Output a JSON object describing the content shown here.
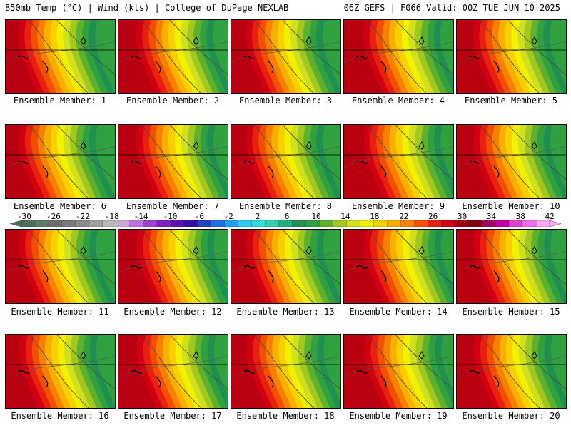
{
  "header": {
    "left": "850mb Temp (°C) | Wind (kts) | College of DuPage NEXLAB",
    "right": "06Z GEFS | F066 Valid: 00Z TUE JUN 10 2025"
  },
  "panels": [
    {
      "label": "Ensemble Member: 1"
    },
    {
      "label": "Ensemble Member: 2"
    },
    {
      "label": "Ensemble Member: 3"
    },
    {
      "label": "Ensemble Member: 4"
    },
    {
      "label": "Ensemble Member: 5"
    },
    {
      "label": "Ensemble Member: 6"
    },
    {
      "label": "Ensemble Member: 7"
    },
    {
      "label": "Ensemble Member: 8"
    },
    {
      "label": "Ensemble Member: 9"
    },
    {
      "label": "Ensemble Member: 10"
    },
    {
      "label": "Ensemble Member: 11"
    },
    {
      "label": "Ensemble Member: 12"
    },
    {
      "label": "Ensemble Member: 13"
    },
    {
      "label": "Ensemble Member: 14"
    },
    {
      "label": "Ensemble Member: 15"
    },
    {
      "label": "Ensemble Member: 16"
    },
    {
      "label": "Ensemble Member: 17"
    },
    {
      "label": "Ensemble Member: 18"
    },
    {
      "label": "Ensemble Member: 19"
    },
    {
      "label": "Ensemble Member: 20"
    }
  ],
  "colorbar": {
    "labels": [
      "-30",
      "-26",
      "-22",
      "-18",
      "-14",
      "-10",
      "-6",
      "-2",
      "2",
      "6",
      "10",
      "14",
      "18",
      "22",
      "26",
      "30",
      "34",
      "38",
      "42"
    ],
    "colors": [
      "#4d6e5a",
      "#5e7a66",
      "#6e6e6e",
      "#7a7a7a",
      "#8a8a8a",
      "#a0a0a0",
      "#b8b8b8",
      "#cfa8d8",
      "#c070e0",
      "#a040d0",
      "#8020c0",
      "#6010b0",
      "#3010a0",
      "#2040c0",
      "#2070e0",
      "#20a0f0",
      "#30c8f0",
      "#30e0e0",
      "#30d0b0",
      "#20b080",
      "#209050",
      "#30a040",
      "#60b030",
      "#a0c820",
      "#d0e020",
      "#f0f000",
      "#f8d000",
      "#f8b000",
      "#f88000",
      "#f05000",
      "#e82010",
      "#d00010",
      "#a00010",
      "#800010",
      "#a00060",
      "#c000a0",
      "#e040d0",
      "#f070f0",
      "#f8a8f8"
    ]
  }
}
